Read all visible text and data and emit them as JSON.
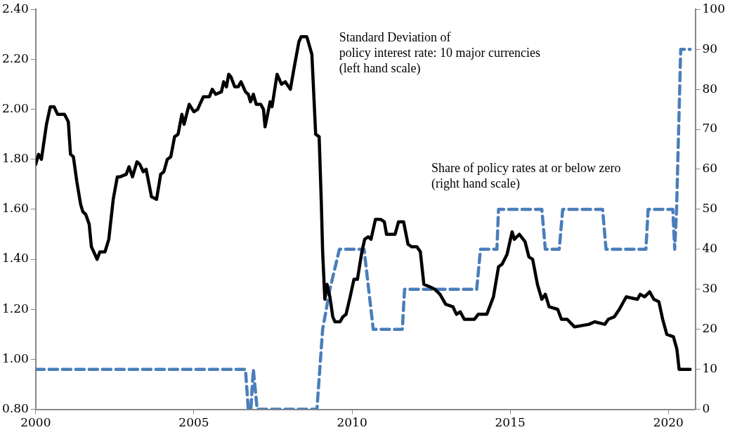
{
  "chart_data": {
    "type": "line",
    "annotations": [
      "Standard Deviation of\npolicy interest rate: 10 major currencies\n(left hand scale)",
      "Share of policy rates at or below zero\n(right hand scale)"
    ],
    "xlim": [
      2000,
      2020.85
    ],
    "xticks": [
      2000,
      2005,
      2010,
      2015,
      2020
    ],
    "ylim": [
      0.8,
      2.4
    ],
    "yticks": [
      {
        "value": 0.8,
        "label": "0.80"
      },
      {
        "value": 1.0,
        "label": "1.00"
      },
      {
        "value": 1.2,
        "label": "1.20"
      },
      {
        "value": 1.4,
        "label": "1.40"
      },
      {
        "value": 1.6,
        "label": "1.60"
      },
      {
        "value": 1.8,
        "label": "1.80"
      },
      {
        "value": 2.0,
        "label": "2.00"
      },
      {
        "value": 2.2,
        "label": "2.20"
      },
      {
        "value": 2.4,
        "label": "2.40"
      }
    ],
    "y2lim": [
      0,
      100
    ],
    "y2ticks": [
      0,
      10,
      20,
      30,
      40,
      50,
      60,
      70,
      80,
      90,
      100
    ],
    "grid": false,
    "legend": false,
    "marker": "none",
    "series": [
      {
        "color": "#000000",
        "line_style": "solid",
        "axis": "y",
        "x": [
          2000.0,
          2000.09,
          2000.18,
          2000.34,
          2000.46,
          2000.58,
          2000.69,
          2000.91,
          2001.03,
          2001.1,
          2001.19,
          2001.3,
          2001.42,
          2001.49,
          2001.58,
          2001.69,
          2001.76,
          2001.87,
          2001.94,
          2002.03,
          2002.19,
          2002.31,
          2002.45,
          2002.58,
          2002.67,
          2002.86,
          2002.95,
          2003.06,
          2003.2,
          2003.29,
          2003.4,
          2003.49,
          2003.66,
          2003.82,
          2003.95,
          2004.05,
          2004.16,
          2004.27,
          2004.39,
          2004.5,
          2004.62,
          2004.69,
          2004.85,
          2005.0,
          2005.12,
          2005.19,
          2005.3,
          2005.49,
          2005.58,
          2005.69,
          2005.87,
          2005.94,
          2006.03,
          2006.1,
          2006.17,
          2006.29,
          2006.4,
          2006.49,
          2006.63,
          2006.72,
          2006.79,
          2006.88,
          2006.97,
          2007.11,
          2007.2,
          2007.25,
          2007.41,
          2007.47,
          2007.63,
          2007.77,
          2007.89,
          2008.05,
          2008.16,
          2008.32,
          2008.39,
          2008.57,
          2008.73,
          2008.85,
          2008.96,
          2009.03,
          2009.07,
          2009.14,
          2009.21,
          2009.3,
          2009.39,
          2009.46,
          2009.62,
          2009.71,
          2009.81,
          2009.94,
          2010.06,
          2010.17,
          2010.31,
          2010.4,
          2010.51,
          2010.6,
          2010.74,
          2010.9,
          2011.02,
          2011.09,
          2011.36,
          2011.47,
          2011.63,
          2011.77,
          2011.89,
          2012.05,
          2012.16,
          2012.27,
          2012.46,
          2012.62,
          2012.78,
          2012.96,
          2013.19,
          2013.3,
          2013.42,
          2013.55,
          2013.87,
          2013.99,
          2014.26,
          2014.47,
          2014.63,
          2014.74,
          2014.9,
          2015.06,
          2015.13,
          2015.29,
          2015.47,
          2015.59,
          2015.71,
          2015.86,
          2016.0,
          2016.11,
          2016.23,
          2016.5,
          2016.62,
          2016.8,
          2017.03,
          2017.49,
          2017.67,
          2017.99,
          2018.1,
          2018.29,
          2018.45,
          2018.67,
          2019.02,
          2019.11,
          2019.25,
          2019.41,
          2019.54,
          2019.7,
          2019.82,
          2019.95,
          2020.16,
          2020.27,
          2020.34,
          2020.69
        ],
        "values": [
          1.78,
          1.82,
          1.8,
          1.94,
          2.01,
          2.01,
          1.98,
          1.98,
          1.95,
          1.82,
          1.81,
          1.71,
          1.62,
          1.59,
          1.58,
          1.54,
          1.45,
          1.42,
          1.4,
          1.43,
          1.43,
          1.48,
          1.64,
          1.73,
          1.73,
          1.74,
          1.77,
          1.73,
          1.79,
          1.78,
          1.75,
          1.76,
          1.65,
          1.64,
          1.74,
          1.75,
          1.8,
          1.81,
          1.89,
          1.9,
          1.98,
          1.94,
          2.02,
          1.99,
          2.0,
          2.02,
          2.05,
          2.05,
          2.08,
          2.06,
          2.07,
          2.11,
          2.09,
          2.14,
          2.13,
          2.09,
          2.09,
          2.11,
          2.07,
          2.06,
          2.03,
          2.06,
          2.02,
          2.02,
          2.0,
          1.93,
          2.03,
          2.01,
          2.14,
          2.1,
          2.11,
          2.08,
          2.16,
          2.27,
          2.29,
          2.29,
          2.22,
          1.9,
          1.89,
          1.62,
          1.43,
          1.24,
          1.3,
          1.25,
          1.17,
          1.15,
          1.15,
          1.17,
          1.18,
          1.25,
          1.32,
          1.32,
          1.43,
          1.48,
          1.49,
          1.48,
          1.56,
          1.56,
          1.55,
          1.5,
          1.5,
          1.55,
          1.55,
          1.46,
          1.45,
          1.45,
          1.43,
          1.3,
          1.29,
          1.28,
          1.26,
          1.22,
          1.21,
          1.18,
          1.19,
          1.16,
          1.16,
          1.18,
          1.18,
          1.25,
          1.37,
          1.38,
          1.42,
          1.51,
          1.48,
          1.5,
          1.47,
          1.41,
          1.4,
          1.3,
          1.24,
          1.26,
          1.21,
          1.2,
          1.16,
          1.16,
          1.13,
          1.14,
          1.15,
          1.14,
          1.16,
          1.17,
          1.2,
          1.25,
          1.24,
          1.26,
          1.25,
          1.27,
          1.24,
          1.23,
          1.16,
          1.1,
          1.09,
          1.04,
          0.96,
          0.96
        ]
      },
      {
        "color": "#4a7ebb",
        "line_style": "dashed",
        "axis": "y2",
        "x": [
          2000.0,
          2006.63,
          2006.72,
          2006.8,
          2006.88,
          2007.0,
          2008.89,
          2009.07,
          2009.3,
          2009.6,
          2010.38,
          2010.67,
          2011.59,
          2011.66,
          2013.94,
          2014.06,
          2014.58,
          2014.63,
          2016.0,
          2016.11,
          2016.55,
          2016.66,
          2017.92,
          2018.03,
          2019.29,
          2019.36,
          2020.14,
          2020.2,
          2020.26,
          2020.39,
          2020.69
        ],
        "values": [
          10,
          10,
          0,
          0,
          10,
          0,
          0,
          20,
          30,
          40,
          40,
          20,
          20,
          30,
          30,
          40,
          40,
          50,
          50,
          40,
          40,
          50,
          50,
          40,
          40,
          50,
          50,
          40,
          50,
          90,
          90
        ]
      }
    ]
  }
}
